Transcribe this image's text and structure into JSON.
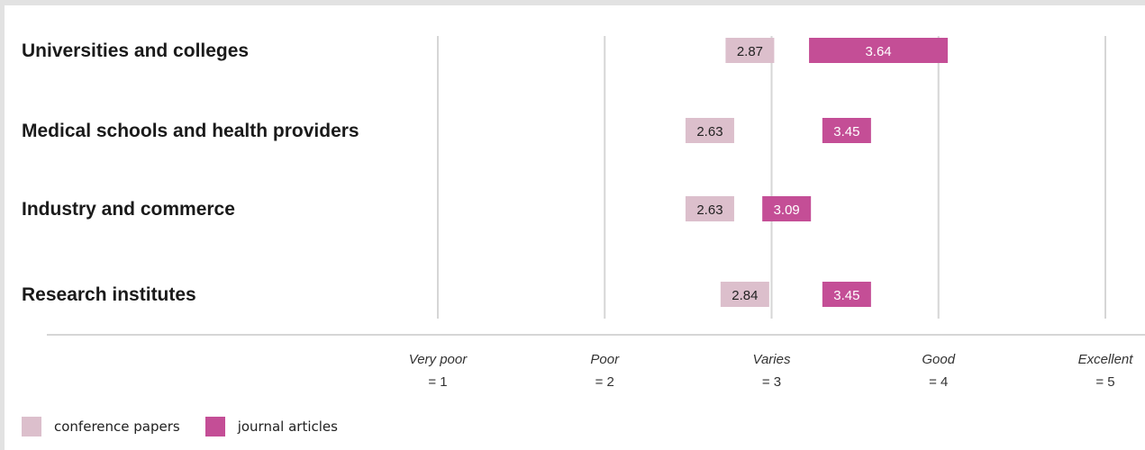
{
  "chart_data": {
    "type": "bar",
    "orientation": "horizontal",
    "categories": [
      "Universities and colleges",
      "Medical schools and health providers",
      "Industry and commerce",
      "Research institutes"
    ],
    "series": [
      {
        "name": "conference papers",
        "color": "#dcbfcc",
        "label_color": "#222222",
        "values": [
          2.87,
          2.63,
          2.63,
          2.84
        ]
      },
      {
        "name": "journal articles",
        "color": "#c44e96",
        "label_color": "#ffffff",
        "values": [
          3.64,
          3.45,
          3.09,
          3.45
        ]
      }
    ],
    "xlim": [
      1,
      5
    ],
    "ticks": [
      {
        "value": 1,
        "name": "Very poor",
        "value_label": "= 1"
      },
      {
        "value": 2,
        "name": "Poor",
        "value_label": "= 2"
      },
      {
        "value": 3,
        "name": "Varies",
        "value_label": "= 3"
      },
      {
        "value": 4,
        "name": "Good",
        "value_label": "= 4"
      },
      {
        "value": 5,
        "name": "Excellent",
        "value_label": "= 5"
      }
    ],
    "grid": true,
    "legend": "bottom-left"
  }
}
